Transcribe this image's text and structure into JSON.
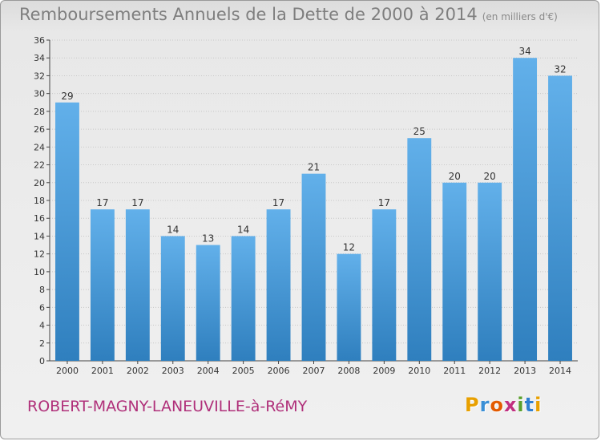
{
  "header": {
    "title": "Remboursements Annuels de la Dette de 2000 à 2014",
    "subtitle": "(en milliers d'€)"
  },
  "footer": {
    "town": "ROBERT-MAGNY-LANEUVILLE-à-RéMY",
    "brand": "Proxiti",
    "brand_colors": [
      "#e8a000",
      "#3a8fd6",
      "#e35a00",
      "#c03080",
      "#5aa02c",
      "#2f7fd0",
      "#e8a000"
    ]
  },
  "colors": {
    "bar_light": "#62b0ea",
    "bar_dark": "#2f7fbe",
    "grid": "#c8c8c8",
    "axis": "#444444",
    "text": "#333333"
  },
  "chart_data": {
    "type": "bar",
    "title": "Remboursements Annuels de la Dette de 2000 à 2014",
    "subtitle": "(en milliers d'€)",
    "xlabel": "",
    "ylabel": "",
    "categories": [
      "2000",
      "2001",
      "2002",
      "2003",
      "2004",
      "2005",
      "2006",
      "2007",
      "2008",
      "2009",
      "2010",
      "2011",
      "2012",
      "2013",
      "2014"
    ],
    "values": [
      29,
      17,
      17,
      14,
      13,
      14,
      17,
      21,
      12,
      17,
      25,
      20,
      20,
      34,
      32
    ],
    "ylim": [
      0,
      36
    ],
    "yticks": [
      0,
      2,
      4,
      6,
      8,
      10,
      12,
      14,
      16,
      18,
      20,
      22,
      24,
      26,
      28,
      30,
      32,
      34,
      36
    ],
    "grid": true,
    "legend": "none"
  }
}
